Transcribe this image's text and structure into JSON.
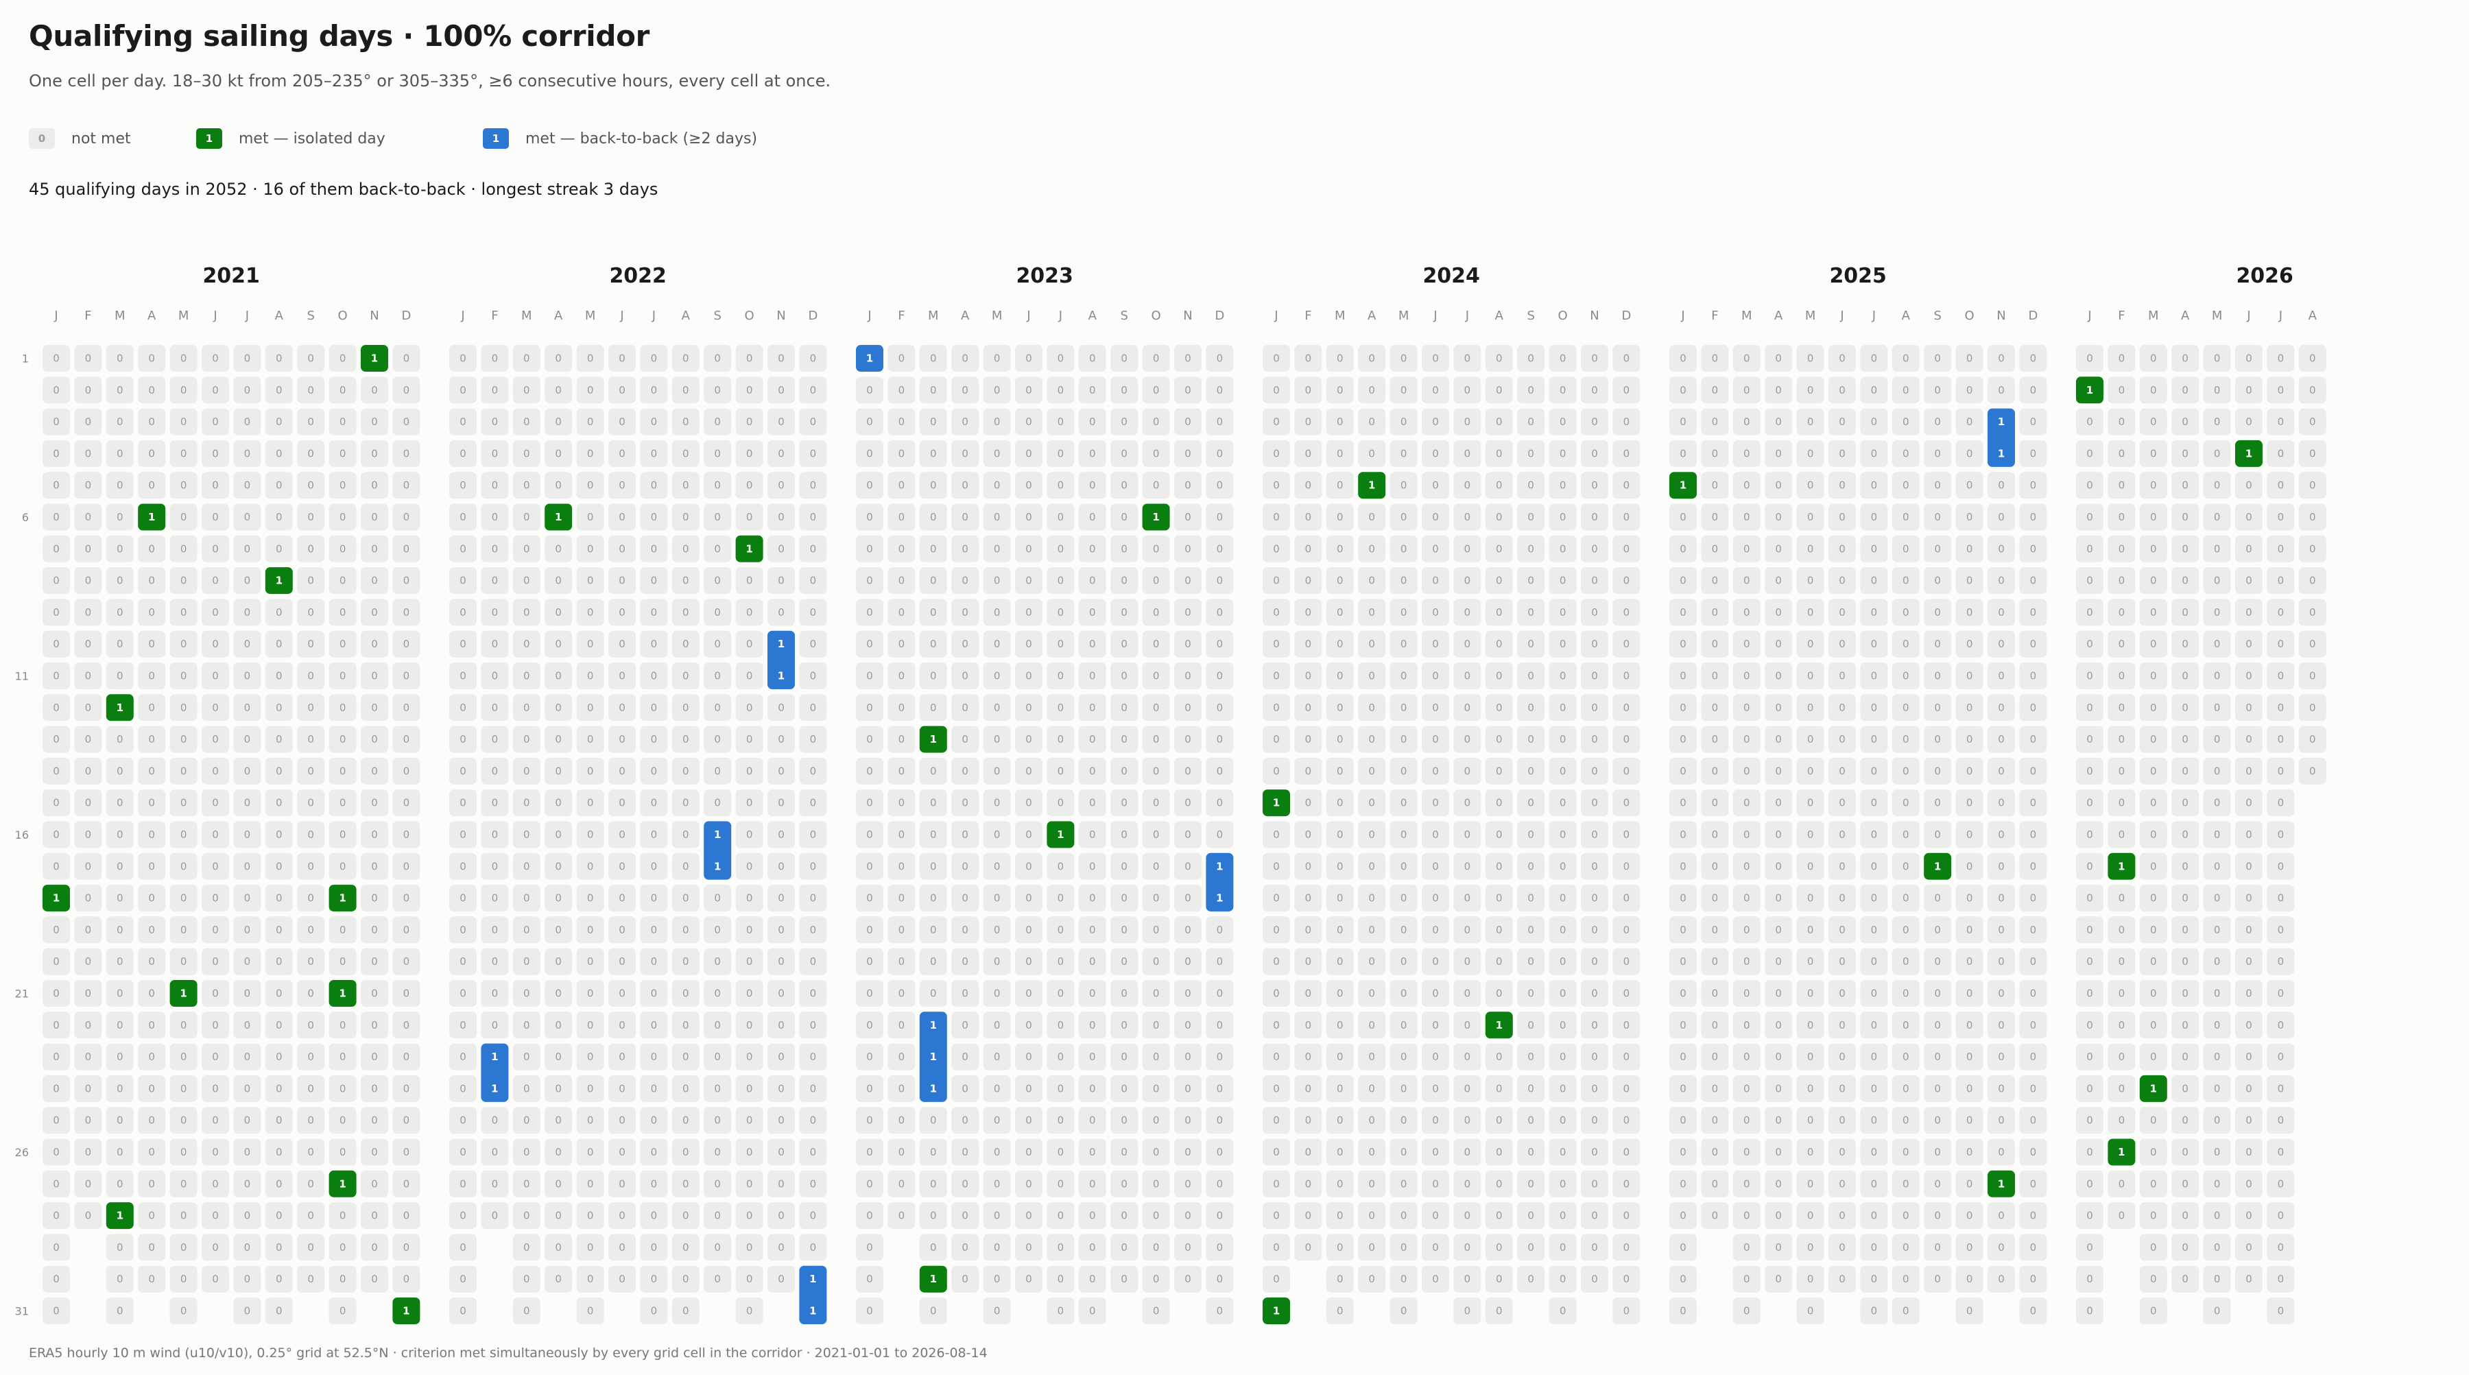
{
  "title": "Qualifying sailing days · 100% corridor",
  "subtitle": "One cell per day. 18–30 kt from 205–235° or 305–335°, ≥6 consecutive hours, every cell at once.",
  "legend": {
    "not_met": {
      "value": "0",
      "label": "not met"
    },
    "isolated": {
      "value": "1",
      "label": "met — isolated day"
    },
    "streak": {
      "value": "1",
      "label": "met — back-to-back (≥2 days)"
    }
  },
  "summary": "45 qualifying days in 2052 · 16 of them back-to-back · longest streak 3 days",
  "footnote": "ERA5 hourly 10 m wind (u10/v10), 0.25° grid at 52.5°N · criterion met simultaneously by every grid cell in the corridor · 2021-01-01 to 2026-08-14",
  "colors": {
    "not_met_bg": "#ececea",
    "not_met_text": "#9a9a9a",
    "isolated": "#0a7f0f",
    "streak": "#2c77d2",
    "met_text": "#ffffff"
  },
  "chart_data": {
    "type": "heatmap",
    "month_labels": [
      "J",
      "F",
      "M",
      "A",
      "M",
      "J",
      "J",
      "A",
      "S",
      "O",
      "N",
      "D"
    ],
    "day_labels": [
      "1",
      "6",
      "11",
      "16",
      "21",
      "26",
      "31"
    ],
    "date_range": [
      "2021-01-01",
      "2026-08-14"
    ],
    "years": [
      {
        "year": 2021,
        "months": 12,
        "met": [
          [
            1,
            18
          ],
          [
            3,
            12
          ],
          [
            3,
            28
          ],
          [
            4,
            6
          ],
          [
            5,
            21
          ],
          [
            8,
            8
          ],
          [
            10,
            18
          ],
          [
            10,
            21
          ],
          [
            10,
            27
          ],
          [
            11,
            1
          ],
          [
            12,
            31
          ]
        ],
        "streaks": []
      },
      {
        "year": 2022,
        "months": 12,
        "met": [
          [
            4,
            6
          ],
          [
            10,
            7
          ]
        ],
        "streaks": [
          [
            2,
            23,
            2
          ],
          [
            9,
            16,
            2
          ],
          [
            11,
            10,
            2
          ],
          [
            12,
            30,
            2
          ]
        ]
      },
      {
        "year": 2023,
        "months": 12,
        "met": [
          [
            3,
            13
          ],
          [
            3,
            30
          ],
          [
            7,
            16
          ],
          [
            10,
            6
          ]
        ],
        "streaks": [
          [
            1,
            1,
            1
          ],
          [
            3,
            22,
            3
          ],
          [
            12,
            17,
            2
          ]
        ]
      },
      {
        "year": 2024,
        "months": 12,
        "met": [
          [
            1,
            15
          ],
          [
            1,
            31
          ],
          [
            4,
            5
          ],
          [
            8,
            22
          ]
        ],
        "streaks": []
      },
      {
        "year": 2025,
        "months": 12,
        "met": [
          [
            1,
            5
          ],
          [
            9,
            17
          ],
          [
            11,
            27
          ]
        ],
        "streaks": [
          [
            11,
            3,
            2
          ]
        ]
      },
      {
        "year": 2026,
        "months": 8,
        "last_month_days": 14,
        "met": [
          [
            1,
            2
          ],
          [
            2,
            17
          ],
          [
            2,
            26
          ],
          [
            3,
            24
          ],
          [
            6,
            4
          ]
        ],
        "streaks": []
      }
    ]
  }
}
